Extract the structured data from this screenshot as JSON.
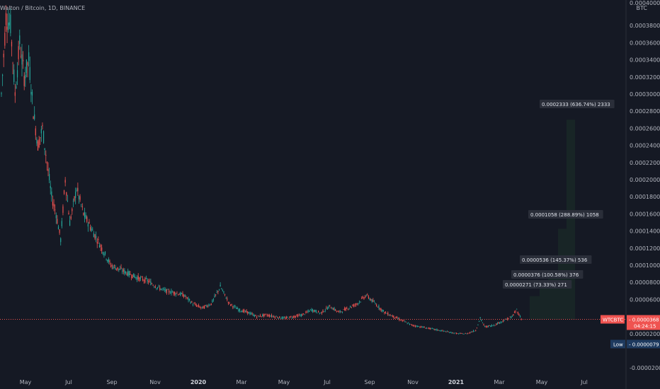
{
  "header": {
    "symbol_title": "Walton / Bitcoin, 1D, BINANCE",
    "currency": "BTC"
  },
  "colors": {
    "background": "#151924",
    "up": "#26a69a",
    "down": "#ef5350",
    "target_box_fill": "#1b3028",
    "target_label_bg": "#2a2e39",
    "current_price_tag": "#ef5350",
    "low_tag": "#1e3a5f"
  },
  "chart_data": {
    "type": "candlestick",
    "title": "Walton / Bitcoin, 1D, BINANCE",
    "ylim": [
      -2e-05,
      0.0004
    ],
    "y_ticks": [
      {
        "value": 0.00038,
        "label": "0.0003800"
      },
      {
        "value": 0.00036,
        "label": "0.0003600"
      },
      {
        "value": 0.00034,
        "label": "0.0003400"
      },
      {
        "value": 0.00032,
        "label": "0.0003200"
      },
      {
        "value": 0.0003,
        "label": "0.0003000"
      },
      {
        "value": 0.00028,
        "label": "0.0002800"
      },
      {
        "value": 0.00026,
        "label": "0.0002600"
      },
      {
        "value": 0.00024,
        "label": "0.0002400"
      },
      {
        "value": 0.00022,
        "label": "0.0002200"
      },
      {
        "value": 0.0002,
        "label": "0.0002000"
      },
      {
        "value": 0.00018,
        "label": "0.0001800"
      },
      {
        "value": 0.00016,
        "label": "0.0001600"
      },
      {
        "value": 0.00014,
        "label": "0.0001400"
      },
      {
        "value": 0.00012,
        "label": "0.0001200"
      },
      {
        "value": 0.0001,
        "label": "0.0001000"
      },
      {
        "value": 8e-05,
        "label": "0.0000800"
      },
      {
        "value": 6e-05,
        "label": "0.0000600"
      },
      {
        "value": 2e-05,
        "label": "0.0000200"
      },
      {
        "value": -2e-05,
        "label": "-0.0000200"
      }
    ],
    "top_tick_label": "0.0004000",
    "x_ticks": [
      {
        "label": "May",
        "bold": false
      },
      {
        "label": "Jul",
        "bold": false
      },
      {
        "label": "Sep",
        "bold": false
      },
      {
        "label": "Nov",
        "bold": false
      },
      {
        "label": "2020",
        "bold": true
      },
      {
        "label": "Mar",
        "bold": false
      },
      {
        "label": "May",
        "bold": false
      },
      {
        "label": "Jul",
        "bold": false
      },
      {
        "label": "Sep",
        "bold": false
      },
      {
        "label": "Nov",
        "bold": false
      },
      {
        "label": "2021",
        "bold": true
      },
      {
        "label": "Mar",
        "bold": false
      },
      {
        "label": "May",
        "bold": false
      },
      {
        "label": "Jul",
        "bold": false
      }
    ],
    "price_path": [
      [
        0,
        0.0003
      ],
      [
        2,
        0.00039
      ],
      [
        4,
        0.00038
      ],
      [
        6,
        0.0003
      ],
      [
        8,
        0.00036
      ],
      [
        10,
        0.00032
      ],
      [
        12,
        0.00034
      ],
      [
        14,
        0.00028
      ],
      [
        16,
        0.00024
      ],
      [
        18,
        0.00026
      ],
      [
        20,
        0.00022
      ],
      [
        22,
        0.00018
      ],
      [
        24,
        0.00016
      ],
      [
        26,
        0.00013
      ],
      [
        28,
        0.0002
      ],
      [
        30,
        0.00015
      ],
      [
        33,
        0.00019
      ],
      [
        36,
        0.00016
      ],
      [
        40,
        0.00014
      ],
      [
        44,
        0.00012
      ],
      [
        48,
        0.0001
      ],
      [
        52,
        9.5e-05
      ],
      [
        56,
        9e-05
      ],
      [
        60,
        8.5e-05
      ],
      [
        64,
        8.2e-05
      ],
      [
        68,
        7.5e-05
      ],
      [
        72,
        7e-05
      ],
      [
        76,
        6.8e-05
      ],
      [
        80,
        6.5e-05
      ],
      [
        84,
        5.5e-05
      ],
      [
        88,
        5e-05
      ],
      [
        92,
        5.5e-05
      ],
      [
        96,
        7.5e-05
      ],
      [
        100,
        5.5e-05
      ],
      [
        104,
        4.8e-05
      ],
      [
        108,
        4.5e-05
      ],
      [
        112,
        4e-05
      ],
      [
        116,
        4.2e-05
      ],
      [
        120,
        4e-05
      ],
      [
        124,
        3.8e-05
      ],
      [
        128,
        4e-05
      ],
      [
        132,
        4.2e-05
      ],
      [
        136,
        4.8e-05
      ],
      [
        140,
        4.4e-05
      ],
      [
        144,
        5.2e-05
      ],
      [
        148,
        4.5e-05
      ],
      [
        152,
        5e-05
      ],
      [
        156,
        5.5e-05
      ],
      [
        160,
        6.5e-05
      ],
      [
        164,
        5.5e-05
      ],
      [
        168,
        4.5e-05
      ],
      [
        172,
        4e-05
      ],
      [
        176,
        3.5e-05
      ],
      [
        180,
        3e-05
      ],
      [
        184,
        2.8e-05
      ],
      [
        188,
        2.6e-05
      ],
      [
        192,
        2.4e-05
      ],
      [
        196,
        2.2e-05
      ],
      [
        200,
        2e-05
      ],
      [
        204,
        2e-05
      ],
      [
        208,
        2.4e-05
      ],
      [
        210,
        3.8e-05
      ],
      [
        212,
        2.8e-05
      ],
      [
        216,
        3e-05
      ],
      [
        220,
        3.5e-05
      ],
      [
        224,
        4e-05
      ],
      [
        226,
        4.8e-05
      ],
      [
        228,
        3.7e-05
      ]
    ],
    "current_price": {
      "label": "WTCBTC",
      "value": 3.68e-05,
      "value_label": "0.0000368",
      "countdown": "04:24:15"
    },
    "low": {
      "label": "Low",
      "value": 7.9e-06,
      "value_label": "0.0000079"
    },
    "targets": [
      {
        "top": 6.39e-05,
        "label": "0.0000271 (73.33%) 271"
      },
      {
        "top": 7.44e-05,
        "label": "0.0000376 (100.58%) 376"
      },
      {
        "top": 9.04e-05,
        "label": "0.0000536 (145.37%) 536"
      },
      {
        "top": 0.0001426,
        "label": "0.0001058 (288.89%) 1058"
      },
      {
        "top": 0.0002701,
        "label": "0.0002333 (636.74%) 2333"
      }
    ]
  }
}
